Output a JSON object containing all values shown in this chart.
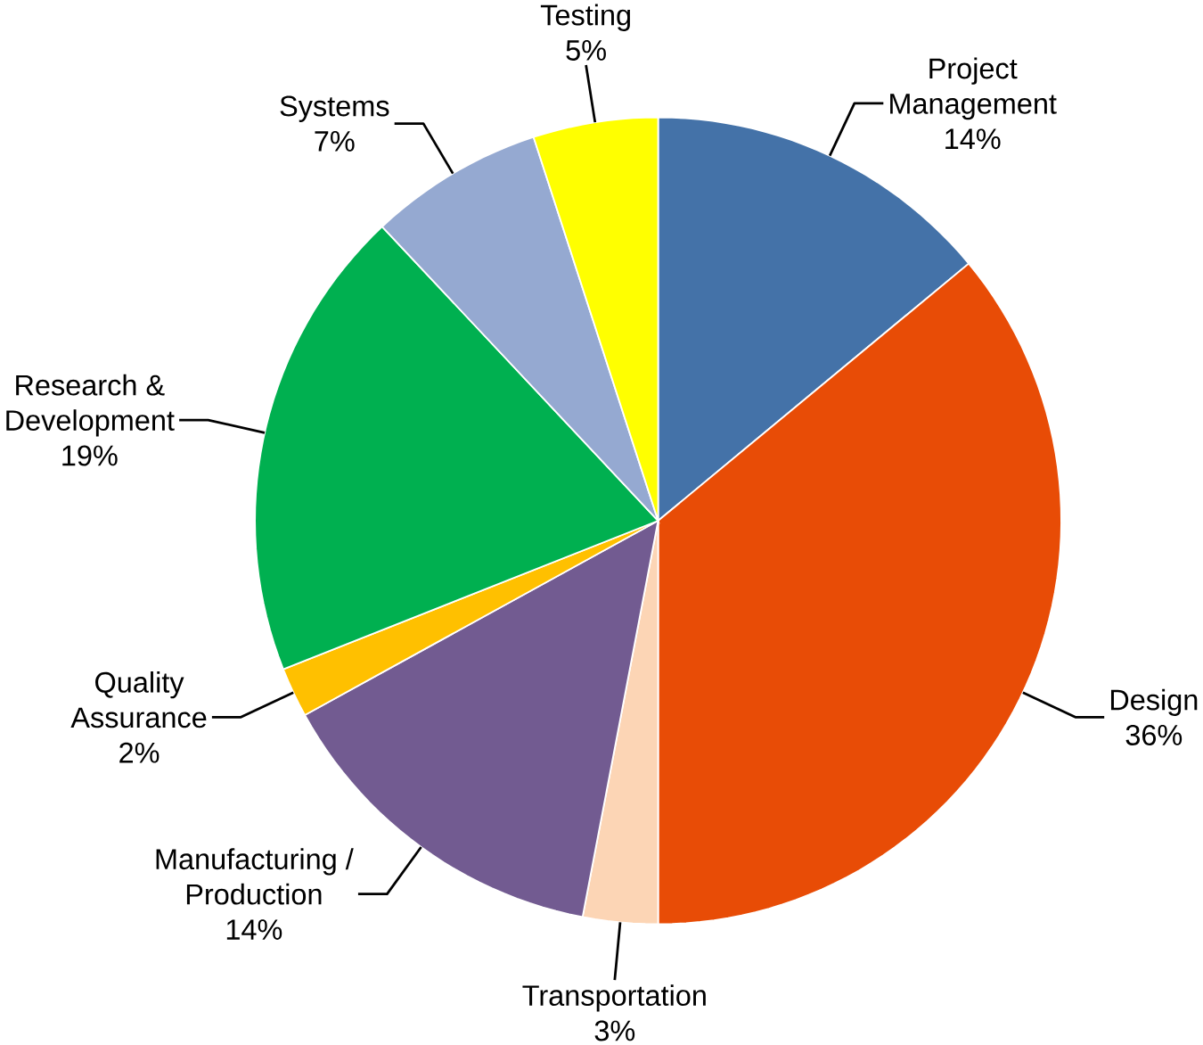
{
  "chart_data": {
    "type": "pie",
    "categories": [
      "Project Management",
      "Design",
      "Transportation",
      "Manufacturing / Production",
      "Quality Assurance",
      "Research & Development",
      "Systems",
      "Testing"
    ],
    "values": [
      14,
      36,
      3,
      14,
      2,
      19,
      7,
      5
    ],
    "value_labels": [
      "14%",
      "36%",
      "3%",
      "14%",
      "2%",
      "19%",
      "7%",
      "5%"
    ],
    "colors": [
      "#4472a8",
      "#e84c06",
      "#fcd5b5",
      "#725b91",
      "#ffc000",
      "#00b050",
      "#95a9d1",
      "#ffff00"
    ]
  }
}
